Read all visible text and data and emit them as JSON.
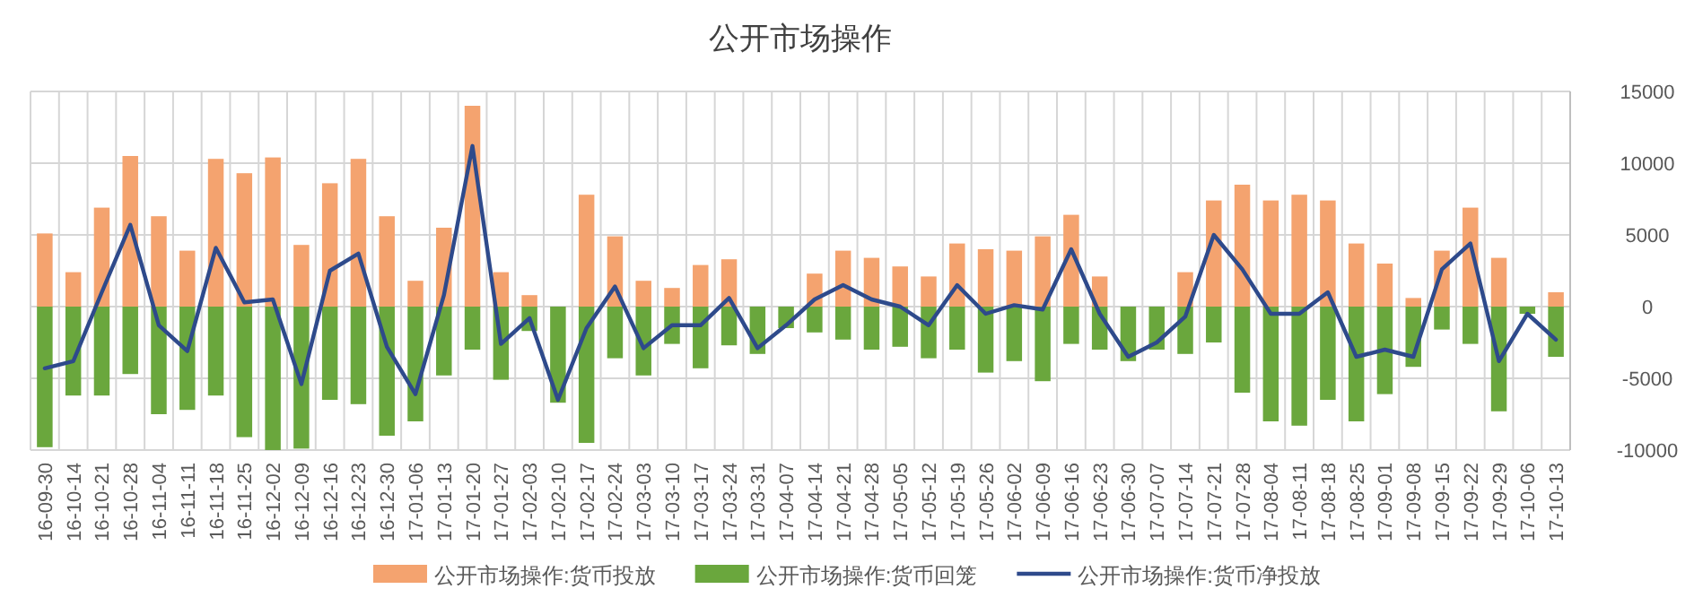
{
  "chart_data": {
    "type": "bar",
    "title": "公开市场操作",
    "stacked": true,
    "grid": true,
    "legend": "bottom",
    "categories": [
      "16-09-30",
      "16-10-14",
      "16-10-21",
      "16-10-28",
      "16-11-04",
      "16-11-11",
      "16-11-18",
      "16-11-25",
      "16-12-02",
      "16-12-09",
      "16-12-16",
      "16-12-23",
      "16-12-30",
      "17-01-06",
      "17-01-13",
      "17-01-20",
      "17-01-27",
      "17-02-03",
      "17-02-10",
      "17-02-17",
      "17-02-24",
      "17-03-03",
      "17-03-10",
      "17-03-17",
      "17-03-24",
      "17-03-31",
      "17-04-07",
      "17-04-14",
      "17-04-21",
      "17-04-28",
      "17-05-05",
      "17-05-12",
      "17-05-19",
      "17-05-26",
      "17-06-02",
      "17-06-09",
      "17-06-16",
      "17-06-23",
      "17-06-30",
      "17-07-07",
      "17-07-14",
      "17-07-21",
      "17-07-28",
      "17-08-04",
      "17-08-11",
      "17-08-18",
      "17-08-25",
      "17-09-01",
      "17-09-08",
      "17-09-15",
      "17-09-22",
      "17-09-29",
      "17-10-06",
      "17-10-13"
    ],
    "ylim": [
      -10000,
      15000
    ],
    "yticks": [
      -10000,
      -5000,
      0,
      5000,
      10000,
      15000
    ],
    "series": [
      {
        "name": "公开市场操作:货币投放",
        "color": "#f4a36f",
        "values": [
          5100,
          2400,
          6900,
          10500,
          6300,
          3900,
          10300,
          9300,
          10400,
          4300,
          8600,
          10300,
          6300,
          1800,
          5500,
          14000,
          2400,
          800,
          0,
          7800,
          4900,
          1800,
          1300,
          2900,
          3300,
          0,
          0,
          2300,
          3900,
          3400,
          2800,
          2100,
          4400,
          4000,
          3900,
          4900,
          6400,
          2100,
          0,
          0,
          2400,
          7400,
          8500,
          7400,
          7800,
          7400,
          4400,
          3000,
          600,
          3900,
          6900,
          3400,
          0,
          1000
        ]
      },
      {
        "name": "公开市场操作:货币回笼",
        "color": "#6aa73d",
        "values": [
          -9800,
          -6200,
          -6200,
          -4700,
          -7500,
          -7200,
          -6200,
          -9100,
          -10000,
          -9900,
          -6500,
          -6800,
          -9000,
          -8000,
          -4800,
          -3000,
          -5100,
          -1700,
          -6700,
          -9500,
          -3600,
          -4800,
          -2600,
          -4300,
          -2700,
          -3300,
          -1500,
          -1800,
          -2300,
          -3000,
          -2800,
          -3600,
          -3000,
          -4600,
          -3800,
          -5200,
          -2600,
          -3000,
          -3800,
          -3000,
          -3300,
          -2500,
          -6000,
          -8000,
          -8300,
          -6500,
          -8000,
          -6100,
          -4200,
          -1600,
          -2600,
          -7300,
          -500,
          -3500
        ]
      },
      {
        "name": "公开市场操作:货币净投放",
        "type": "line",
        "color": "#2e4a8b",
        "values": [
          -4300,
          -3800,
          1000,
          5700,
          -1300,
          -3100,
          4100,
          300,
          500,
          -5400,
          2500,
          3700,
          -2800,
          -6100,
          800,
          11200,
          -2600,
          -800,
          -6500,
          -1500,
          1400,
          -2900,
          -1300,
          -1300,
          600,
          -2900,
          -1300,
          500,
          1500,
          500,
          0,
          -1300,
          1500,
          -500,
          100,
          -200,
          4000,
          -500,
          -3500,
          -2500,
          -700,
          5000,
          2600,
          -500,
          -500,
          1000,
          -3500,
          -3000,
          -3500,
          2600,
          4400,
          -3800,
          -500,
          -2300
        ]
      }
    ]
  }
}
